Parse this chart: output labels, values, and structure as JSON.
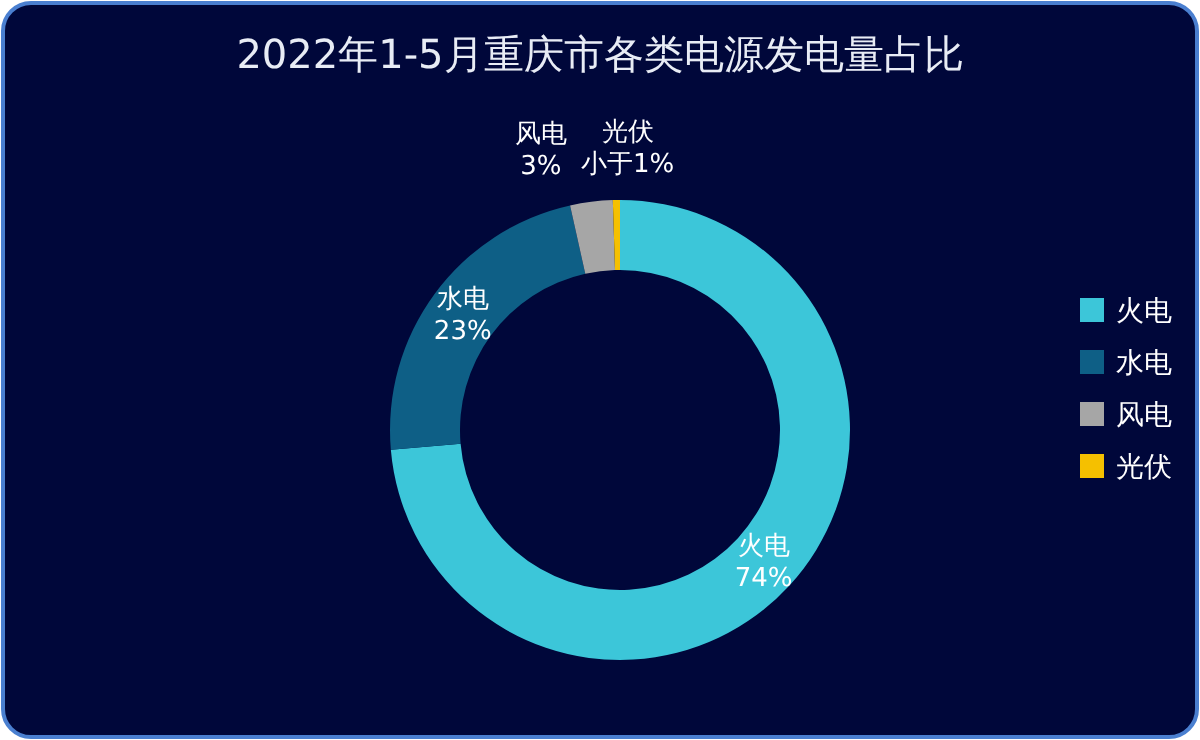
{
  "chart_data": {
    "type": "donut",
    "title": "2022年1-5月重庆市各类电源发电量占比",
    "categories": [
      "火电",
      "水电",
      "风电",
      "光伏"
    ],
    "values": [
      74,
      23,
      3,
      0.5
    ],
    "value_labels": [
      "74%",
      "23%",
      "3%",
      "小于1%"
    ],
    "colors": [
      "#3cc6d9",
      "#0e5f86",
      "#a6a6a6",
      "#f5c000"
    ],
    "legend": "right"
  }
}
